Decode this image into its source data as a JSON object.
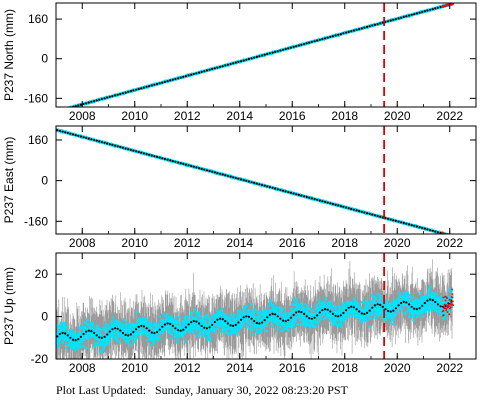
{
  "footer": {
    "label": "Plot Last Updated:",
    "timestamp": "Sunday, January 30, 2022 08:23:20 PST"
  },
  "chart_data": [
    {
      "type": "scatter",
      "ylabel": "P237 North (mm)",
      "xlim": [
        2007.0,
        2023.0
      ],
      "ylim": [
        -195,
        225
      ],
      "x_ticks": [
        2008,
        2010,
        2012,
        2014,
        2016,
        2018,
        2020,
        2022
      ],
      "y_ticks": [
        -160,
        0,
        160
      ],
      "trend": {
        "x": [
          2007.0,
          2022.1
        ],
        "y": [
          -213,
          222
        ]
      },
      "residual_scatter": 3,
      "seasonal_amplitude": 0,
      "marker_line_x": 2019.5,
      "colors": {
        "points": "#00e5ff",
        "errorbars": "#9a9a9a",
        "trend": "#000000",
        "recent": "#ff0000",
        "marker": "#e00000"
      }
    },
    {
      "type": "scatter",
      "ylabel": "P237 East (mm)",
      "xlim": [
        2007.0,
        2023.0
      ],
      "ylim": [
        -210,
        215
      ],
      "x_ticks": [
        2008,
        2010,
        2012,
        2014,
        2016,
        2018,
        2020,
        2022
      ],
      "y_ticks": [
        -160,
        0,
        160
      ],
      "trend": {
        "x": [
          2007.0,
          2022.1
        ],
        "y": [
          200,
          -218
        ]
      },
      "residual_scatter": 3,
      "seasonal_amplitude": 0,
      "marker_line_x": 2019.5,
      "colors": {
        "points": "#00e5ff",
        "errorbars": "#9a9a9a",
        "trend": "#000000",
        "recent": "#ff0000",
        "marker": "#e00000"
      }
    },
    {
      "type": "scatter",
      "ylabel": "P237 Up (mm)",
      "xlim": [
        2007.0,
        2023.0
      ],
      "ylim": [
        -20,
        30
      ],
      "x_ticks": [
        2008,
        2010,
        2012,
        2014,
        2016,
        2018,
        2020,
        2022
      ],
      "y_ticks": [
        -20,
        0,
        20
      ],
      "trend": {
        "x": [
          2007.0,
          2022.1
        ],
        "y": [
          -10,
          7
        ]
      },
      "residual_scatter": 6,
      "seasonal_amplitude": 2,
      "marker_line_x": 2019.5,
      "colors": {
        "points": "#00e5ff",
        "errorbars": "#9a9a9a",
        "trend": "#000000",
        "recent": "#ff0000",
        "marker": "#e00000"
      }
    }
  ]
}
